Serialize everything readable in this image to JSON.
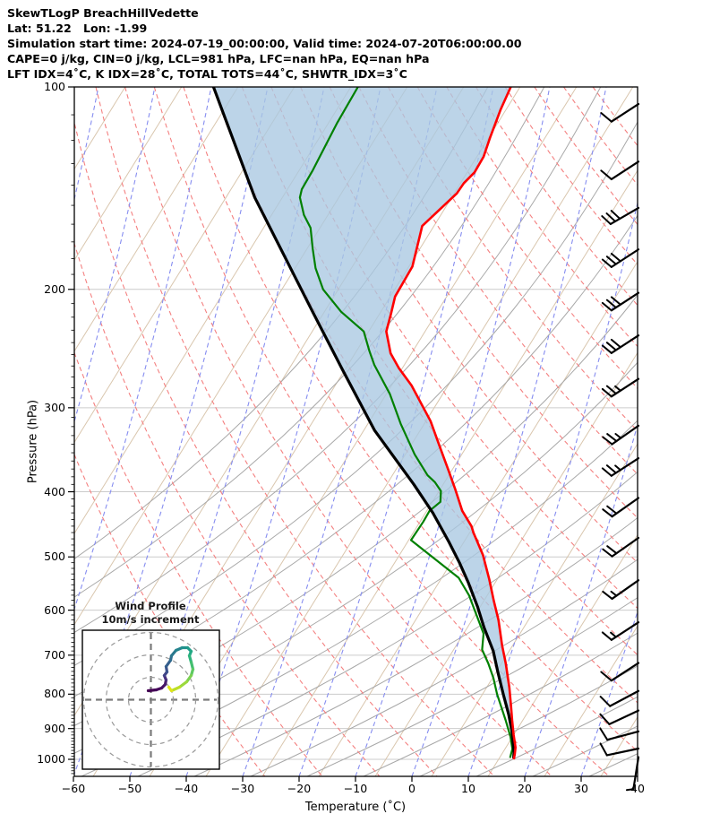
{
  "header": {
    "line1": "SkewTLogP BreachHillVedette",
    "line2": "Lat: 51.22   Lon: -1.99",
    "line3": "Simulation start time: 2024-07-19_00:00:00, Valid time: 2024-07-20T06:00:00.00",
    "line4": "CAPE=0 j/kg, CIN=0 j/kg, LCL=981 hPa, LFC=nan hPa, EQ=nan hPa",
    "line5": "LFT IDX=4˚C, K IDX=28˚C, TOTAL TOTS=44˚C, SHWTR_IDX=3˚C"
  },
  "chart_data": {
    "type": "skewt_logp",
    "xlabel": "Temperature (˚C)",
    "ylabel": "Pressure (hPa)",
    "x_ticks": [
      -60,
      -50,
      -40,
      -30,
      -20,
      -10,
      0,
      10,
      20,
      30,
      40
    ],
    "p_ticks": [
      100,
      200,
      300,
      400,
      500,
      600,
      700,
      800,
      900,
      1000
    ],
    "x_range": [
      -60,
      40
    ],
    "p_range": [
      100,
      1060
    ],
    "grid": "skewed 45-degree isotherms, log-pressure vertical axis",
    "series": {
      "temperature": {
        "name": "temperature",
        "color": "#ff0000",
        "points_p_T": [
          [
            100,
            -52.9
          ],
          [
            108,
            -52.4
          ],
          [
            119,
            -51.4
          ],
          [
            127,
            -50.6
          ],
          [
            134,
            -50.6
          ],
          [
            139,
            -51.4
          ],
          [
            144,
            -51.6
          ],
          [
            161,
            -54.4
          ],
          [
            185,
            -52.0
          ],
          [
            205,
            -52.0
          ],
          [
            217,
            -51.0
          ],
          [
            231,
            -50.0
          ],
          [
            249,
            -47.0
          ],
          [
            262,
            -44.0
          ],
          [
            278,
            -40.0
          ],
          [
            314,
            -33.0
          ],
          [
            341,
            -29.0
          ],
          [
            370,
            -25.0
          ],
          [
            397,
            -21.6
          ],
          [
            427,
            -18.2
          ],
          [
            450,
            -15.0
          ],
          [
            460,
            -14.0
          ],
          [
            497,
            -10.0
          ],
          [
            540,
            -6.4
          ],
          [
            580,
            -3.5
          ],
          [
            621,
            -0.6
          ],
          [
            677,
            2.6
          ],
          [
            720,
            5.1
          ],
          [
            782,
            8.2
          ],
          [
            831,
            10.3
          ],
          [
            874,
            12.0
          ],
          [
            920,
            13.8
          ],
          [
            960,
            15.4
          ],
          [
            984,
            16.0
          ],
          [
            1000,
            16.3
          ]
        ]
      },
      "dewpoint": {
        "name": "dewpoint",
        "color": "#008000",
        "points_p_T": [
          [
            100,
            -80.0
          ],
          [
            113,
            -80.0
          ],
          [
            133,
            -79.5
          ],
          [
            142,
            -79.5
          ],
          [
            146,
            -79.0
          ],
          [
            155,
            -76.5
          ],
          [
            162,
            -74.0
          ],
          [
            174,
            -71.5
          ],
          [
            186,
            -69.0
          ],
          [
            200,
            -65.5
          ],
          [
            216,
            -60.0
          ],
          [
            231,
            -54.0
          ],
          [
            247,
            -51.0
          ],
          [
            259,
            -48.7
          ],
          [
            286,
            -43.0
          ],
          [
            317,
            -38.0
          ],
          [
            352,
            -32.4
          ],
          [
            378,
            -28.0
          ],
          [
            387,
            -26.0
          ],
          [
            399,
            -24.0
          ],
          [
            414,
            -23.0
          ],
          [
            427,
            -24.0
          ],
          [
            443,
            -24.0
          ],
          [
            472,
            -24.3
          ],
          [
            537,
            -12.0
          ],
          [
            570,
            -8.4
          ],
          [
            650,
            -1.9
          ],
          [
            687,
            -0.5
          ],
          [
            720,
            2.0
          ],
          [
            757,
            4.4
          ],
          [
            800,
            6.7
          ],
          [
            875,
            10.9
          ],
          [
            925,
            13.4
          ],
          [
            965,
            15.0
          ],
          [
            995,
            15.5
          ]
        ]
      },
      "parcel": {
        "name": "parcel profile",
        "color": "#000000",
        "points_p_T": [
          [
            100,
            -105.6
          ],
          [
            146,
            -87.0
          ],
          [
            217,
            -64.8
          ],
          [
            265,
            -53.5
          ],
          [
            324,
            -42.0
          ],
          [
            390,
            -29.5
          ],
          [
            430,
            -23.2
          ],
          [
            475,
            -17.4
          ],
          [
            510,
            -13.4
          ],
          [
            546,
            -9.8
          ],
          [
            593,
            -5.7
          ],
          [
            637,
            -2.4
          ],
          [
            690,
            1.6
          ],
          [
            742,
            4.6
          ],
          [
            800,
            7.8
          ],
          [
            857,
            10.8
          ],
          [
            910,
            13.2
          ],
          [
            975,
            15.6
          ],
          [
            997,
            16.2
          ]
        ]
      },
      "shade_between": "parcel-temperature",
      "shade_color": "#a9c8e1"
    },
    "wind_barbs": {
      "units": "m/s",
      "items": [
        {
          "p": 110,
          "spd": 10,
          "ang": 33
        },
        {
          "p": 134,
          "spd": 10,
          "ang": 33
        },
        {
          "p": 157,
          "spd": 30,
          "ang": 30
        },
        {
          "p": 181,
          "spd": 30,
          "ang": 33
        },
        {
          "p": 210,
          "spd": 30,
          "ang": 33
        },
        {
          "p": 243,
          "spd": 30,
          "ang": 33
        },
        {
          "p": 282,
          "spd": 25,
          "ang": 33
        },
        {
          "p": 331,
          "spd": 25,
          "ang": 35
        },
        {
          "p": 370,
          "spd": 25,
          "ang": 33
        },
        {
          "p": 424,
          "spd": 20,
          "ang": 35
        },
        {
          "p": 486,
          "spd": 20,
          "ang": 35
        },
        {
          "p": 562,
          "spd": 15,
          "ang": 35
        },
        {
          "p": 649,
          "spd": 15,
          "ang": 33
        },
        {
          "p": 746,
          "spd": 10,
          "ang": 33
        },
        {
          "p": 821,
          "spd": 10,
          "ang": 28
        },
        {
          "p": 878,
          "spd": 10,
          "ang": 25
        },
        {
          "p": 943,
          "spd": 10,
          "ang": 15
        },
        {
          "p": 1000,
          "spd": 10,
          "ang": 12
        },
        {
          "p": 1030,
          "spd": 5,
          "ang": 81
        }
      ]
    },
    "background": {
      "pressure_grid_color": "#cccccc",
      "isotherm_color": "#d9c6ae",
      "skew_grid_color": "#a8a8a8",
      "dry_adiabat_color": "#f48080",
      "moist_line_color": "#868df0",
      "dry_adiabats_theta_K": {
        "start": 243,
        "stop": 453,
        "step": 10
      },
      "temperature_step_C": 10
    },
    "inset": {
      "title_line1": "Wind Profile",
      "title_line2": "10m/s increment",
      "ring_interval_ms": 10,
      "rings_ms": [
        10,
        20,
        30
      ],
      "trace_uv_ms": [
        [
          -1.2,
          4.0
        ],
        [
          2.4,
          4.4
        ],
        [
          4.8,
          5.2
        ],
        [
          6.4,
          6.8
        ],
        [
          6.8,
          8.8
        ],
        [
          6.0,
          10.8
        ],
        [
          7.2,
          12.4
        ],
        [
          6.8,
          14.8
        ],
        [
          8.8,
          17.6
        ],
        [
          9.2,
          19.6
        ],
        [
          11.2,
          22.0
        ],
        [
          14.0,
          23.2
        ],
        [
          16.4,
          23.2
        ],
        [
          18.0,
          21.6
        ],
        [
          17.2,
          19.6
        ],
        [
          18.0,
          16.8
        ],
        [
          18.8,
          13.6
        ],
        [
          18.0,
          10.8
        ],
        [
          16.0,
          8.0
        ],
        [
          12.8,
          5.6
        ],
        [
          9.2,
          4.0
        ],
        [
          8.0,
          5.6
        ]
      ],
      "trace_colors": [
        "#440154",
        "#46085c",
        "#471063",
        "#481a6c",
        "#472f7d",
        "#414487",
        "#3b528b",
        "#355f8d",
        "#2f6c8e",
        "#2a788e",
        "#25848e",
        "#21918c",
        "#1e9c89",
        "#22a884",
        "#2fb47c",
        "#44bf70",
        "#5ec962",
        "#7ad151",
        "#9bd93c",
        "#bddf26",
        "#e2e418",
        "#fde725"
      ]
    }
  }
}
